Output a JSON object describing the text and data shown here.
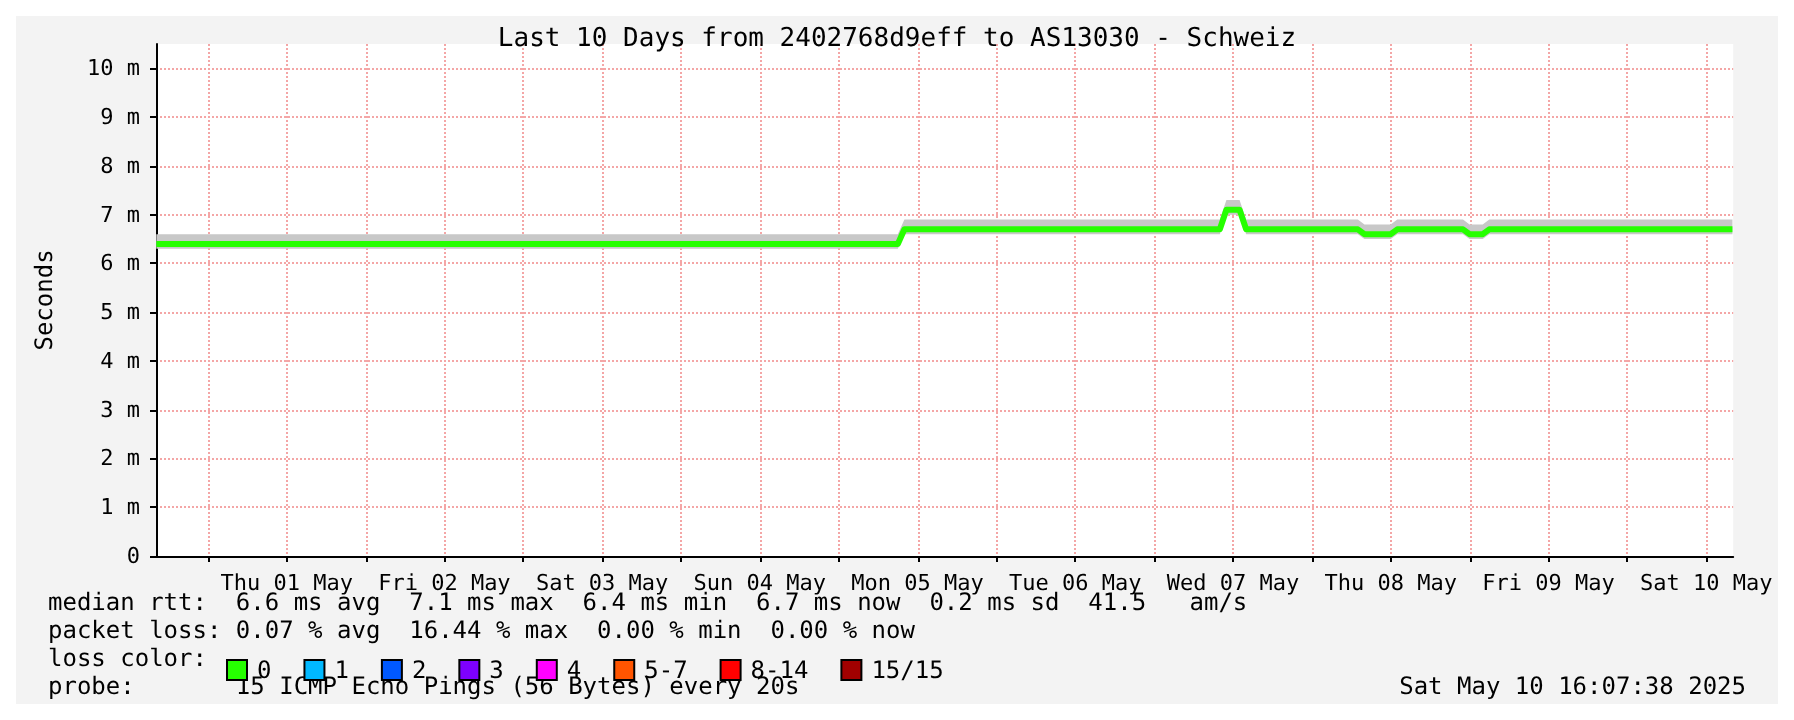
{
  "chart_data": {
    "type": "line",
    "title": "Last 10 Days from 2402768d9eff to AS13030 - Schweiz",
    "ylabel": "Seconds",
    "x": [
      "2025-04-30T16:10",
      "2025-05-01T12:00",
      "2025-05-02T12:00",
      "2025-05-03T12:00",
      "2025-05-04T12:00",
      "2025-05-05T09:00",
      "2025-05-05T10:00",
      "2025-05-06T12:00",
      "2025-05-07T10:00",
      "2025-05-07T11:00",
      "2025-05-07T13:00",
      "2025-05-07T14:00",
      "2025-05-08T07:00",
      "2025-05-08T08:00",
      "2025-05-08T12:00",
      "2025-05-08T13:00",
      "2025-05-08T23:00",
      "2025-05-09T00:00",
      "2025-05-09T02:00",
      "2025-05-09T03:00",
      "2025-05-10T16:00"
    ],
    "series": [
      {
        "name": "0",
        "color": "#26ff00",
        "values": [
          6.4,
          6.4,
          6.4,
          6.4,
          6.4,
          6.4,
          6.7,
          6.7,
          6.7,
          7.1,
          7.1,
          6.7,
          6.7,
          6.6,
          6.6,
          6.7,
          6.7,
          6.6,
          6.6,
          6.7,
          6.7
        ],
        "lower": [
          6.3,
          6.3,
          6.3,
          6.3,
          6.3,
          6.3,
          6.6,
          6.6,
          6.6,
          7.0,
          7.0,
          6.6,
          6.6,
          6.5,
          6.5,
          6.6,
          6.6,
          6.5,
          6.5,
          6.6,
          6.6
        ],
        "upper": [
          6.6,
          6.6,
          6.6,
          6.6,
          6.6,
          6.6,
          6.9,
          6.9,
          6.9,
          7.3,
          7.3,
          6.9,
          6.9,
          6.8,
          6.8,
          6.9,
          6.9,
          6.8,
          6.8,
          6.9,
          6.9
        ]
      },
      {
        "name": "1",
        "color": "#00b8ff",
        "values": [
          null,
          null,
          null,
          null,
          null,
          null,
          null,
          null,
          null,
          null,
          null,
          null,
          null,
          null,
          null,
          null,
          null,
          null,
          null,
          null,
          null
        ]
      },
      {
        "name": "2",
        "color": "#0059ff",
        "values": [
          null,
          null,
          null,
          null,
          null,
          null,
          null,
          null,
          null,
          null,
          null,
          null,
          null,
          null,
          null,
          null,
          null,
          null,
          null,
          null,
          null
        ]
      },
      {
        "name": "3",
        "color": "#7e00ff",
        "values": [
          null,
          null,
          null,
          null,
          null,
          null,
          null,
          null,
          null,
          null,
          null,
          null,
          null,
          null,
          null,
          null,
          null,
          null,
          null,
          null,
          null
        ]
      },
      {
        "name": "4",
        "color": "#ff00ff",
        "values": [
          null,
          null,
          null,
          null,
          null,
          null,
          null,
          null,
          null,
          null,
          null,
          null,
          null,
          null,
          null,
          null,
          null,
          null,
          null,
          null,
          null
        ]
      },
      {
        "name": "5-7",
        "color": "#ff5500",
        "values": [
          null,
          null,
          null,
          null,
          null,
          null,
          null,
          null,
          null,
          null,
          null,
          null,
          null,
          null,
          null,
          null,
          null,
          null,
          null,
          null,
          null
        ]
      },
      {
        "name": "8-14",
        "color": "#ff0000",
        "values": [
          null,
          null,
          null,
          null,
          null,
          null,
          null,
          null,
          null,
          null,
          null,
          null,
          null,
          null,
          null,
          null,
          null,
          null,
          null,
          null,
          null
        ]
      },
      {
        "name": "15/15",
        "color": "#a10000",
        "values": [
          null,
          null,
          null,
          null,
          null,
          null,
          null,
          null,
          null,
          null,
          null,
          null,
          null,
          null,
          null,
          null,
          null,
          null,
          null,
          null,
          null
        ]
      }
    ],
    "xlim": [
      "2025-04-30T16:07",
      "2025-05-10T16:07"
    ],
    "xticks": [
      {
        "value": "2025-05-01T00:00",
        "label": null
      },
      {
        "value": "2025-05-01T12:00",
        "label": "Thu 01 May"
      },
      {
        "value": "2025-05-02T00:00",
        "label": null
      },
      {
        "value": "2025-05-02T12:00",
        "label": "Fri 02 May"
      },
      {
        "value": "2025-05-03T00:00",
        "label": null
      },
      {
        "value": "2025-05-03T12:00",
        "label": "Sat 03 May"
      },
      {
        "value": "2025-05-04T00:00",
        "label": null
      },
      {
        "value": "2025-05-04T12:00",
        "label": "Sun 04 May"
      },
      {
        "value": "2025-05-05T00:00",
        "label": null
      },
      {
        "value": "2025-05-05T12:00",
        "label": "Mon 05 May"
      },
      {
        "value": "2025-05-06T00:00",
        "label": null
      },
      {
        "value": "2025-05-06T12:00",
        "label": "Tue 06 May"
      },
      {
        "value": "2025-05-07T00:00",
        "label": null
      },
      {
        "value": "2025-05-07T12:00",
        "label": "Wed 07 May"
      },
      {
        "value": "2025-05-08T00:00",
        "label": null
      },
      {
        "value": "2025-05-08T12:00",
        "label": "Thu 08 May"
      },
      {
        "value": "2025-05-09T00:00",
        "label": null
      },
      {
        "value": "2025-05-09T12:00",
        "label": "Fri 09 May"
      },
      {
        "value": "2025-05-10T00:00",
        "label": null
      },
      {
        "value": "2025-05-10T12:00",
        "label": "Sat 10 May"
      }
    ],
    "ylim": [
      0,
      10.5
    ],
    "yticks": [
      {
        "value": 0,
        "label": "0"
      },
      {
        "value": 1,
        "label": "1 m"
      },
      {
        "value": 2,
        "label": "2 m"
      },
      {
        "value": 3,
        "label": "3 m"
      },
      {
        "value": 4,
        "label": "4 m"
      },
      {
        "value": 5,
        "label": "5 m"
      },
      {
        "value": 6,
        "label": "6 m"
      },
      {
        "value": 7,
        "label": "7 m"
      },
      {
        "value": 8,
        "label": "8 m"
      },
      {
        "value": 9,
        "label": "9 m"
      },
      {
        "value": 10,
        "label": "10 m"
      }
    ],
    "grid": true,
    "legend": "bottom left",
    "marker": "none",
    "line_style": "solid",
    "annotations": [
      "median rtt:  6.6 ms avg  7.1 ms max  6.4 ms min  6.7 ms now  0.2 ms sd  41.5   am/s",
      "packet loss: 0.07 % avg  16.44 % max  0.00 % min  0.00 % now",
      "loss color:",
      "probe:       15 ICMP Echo Pings (56 Bytes) every 20s",
      "Sat May 10 16:07:38 2025"
    ]
  }
}
